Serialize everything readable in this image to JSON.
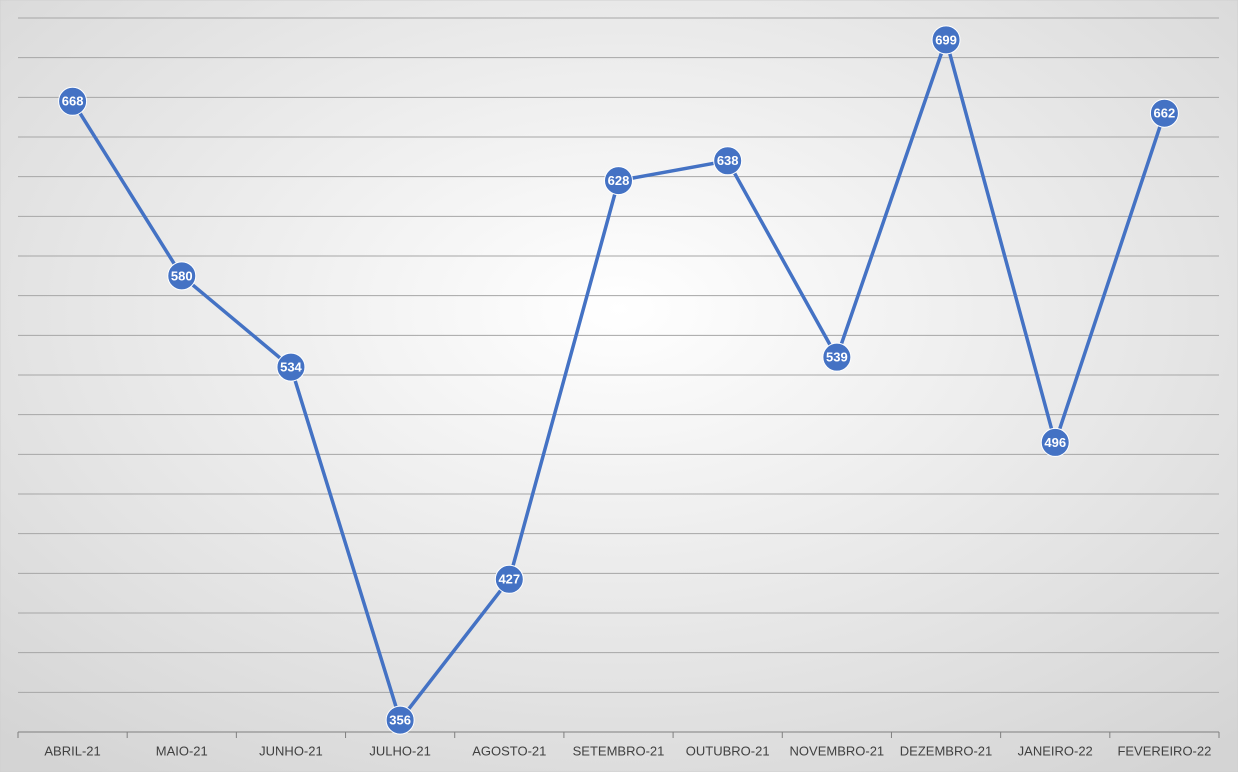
{
  "chart_data": {
    "type": "line",
    "categories": [
      "ABRIL-21",
      "MAIO-21",
      "JUNHO-21",
      "JULHO-21",
      "AGOSTO-21",
      "SETEMBRO-21",
      "OUTUBRO-21",
      "NOVEMBRO-21",
      "DEZEMBRO-21",
      "JANEIRO-22",
      "FEVEREIRO-22"
    ],
    "values": [
      668,
      580,
      534,
      356,
      427,
      628,
      638,
      539,
      699,
      496,
      662
    ],
    "color": "#4472c4",
    "ylim": [
      350,
      710
    ],
    "yticks": [
      350,
      370,
      390,
      410,
      430,
      450,
      470,
      490,
      510,
      530,
      550,
      570,
      590,
      610,
      630,
      650,
      670,
      690,
      710
    ],
    "grid": true
  }
}
